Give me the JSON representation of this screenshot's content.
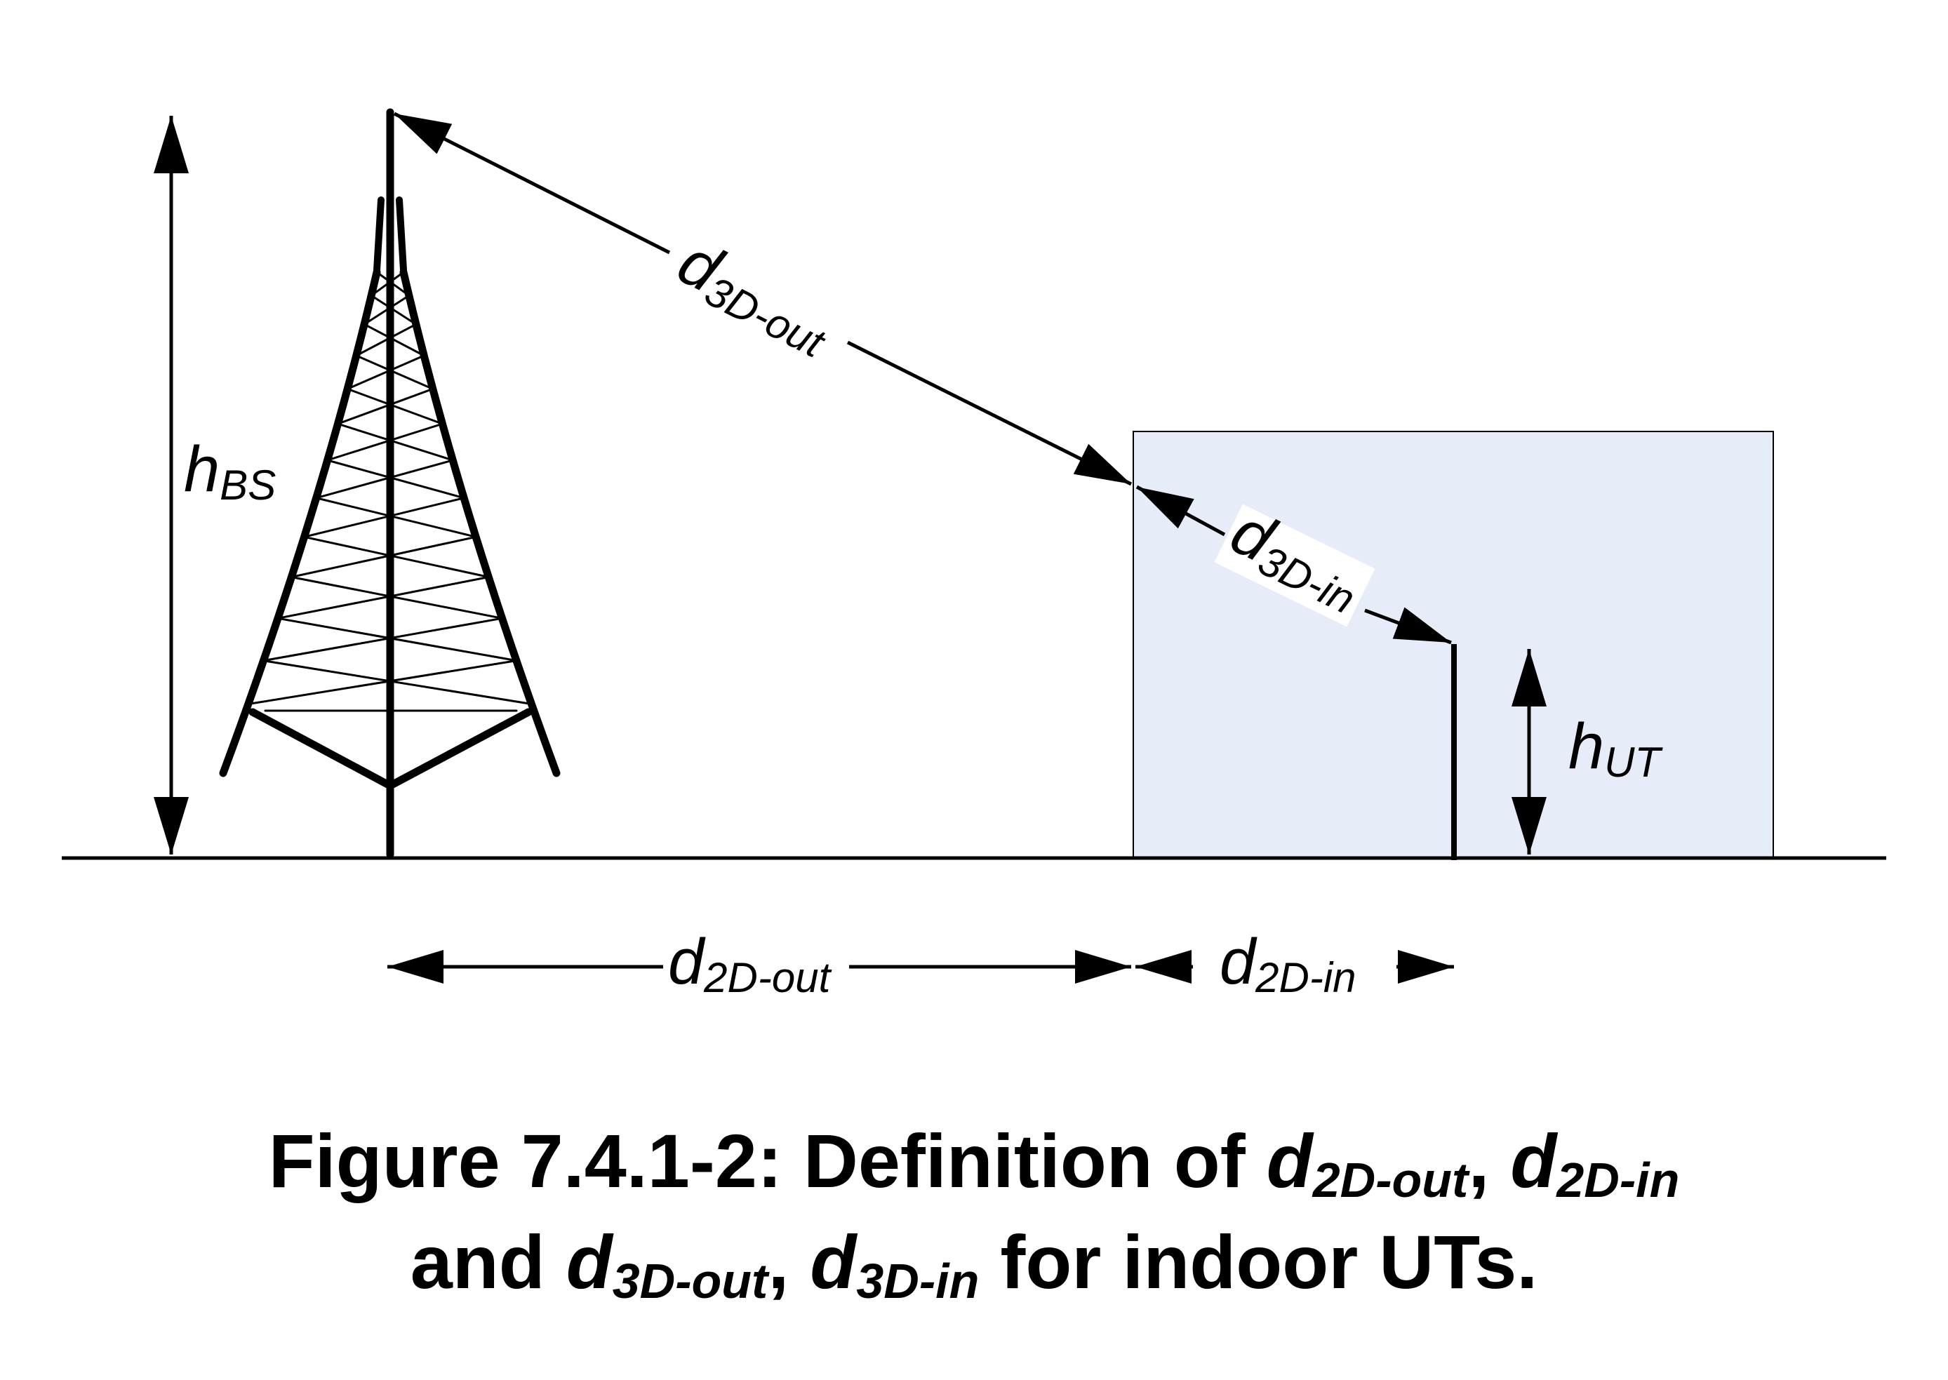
{
  "labels": {
    "h_bs": {
      "main": "h",
      "sub": "BS"
    },
    "h_ut": {
      "main": "h",
      "sub": "UT"
    },
    "d3d_out": {
      "main": "d",
      "sub": "3D-out"
    },
    "d3d_in": {
      "main": "d",
      "sub": "3D-in"
    },
    "d2d_out": {
      "main": "d",
      "sub": "2D-out"
    },
    "d2d_in": {
      "main": "d",
      "sub": "2D-in"
    }
  },
  "caption": {
    "line1": {
      "prefix": "Figure 7.4.1-2: Definition of ",
      "t1_main": "d",
      "t1_sub": "2D-out",
      "sep": ", ",
      "t2_main": "d",
      "t2_sub": "2D-in"
    },
    "line2": {
      "prefix": "and ",
      "t1_main": "d",
      "t1_sub": "3D-out",
      "sep": ", ",
      "t2_main": "d",
      "t2_sub": "3D-in",
      "suffix": " for indoor UTs."
    }
  },
  "colors": {
    "building_fill": "#e6edf8",
    "line": "#000000"
  }
}
